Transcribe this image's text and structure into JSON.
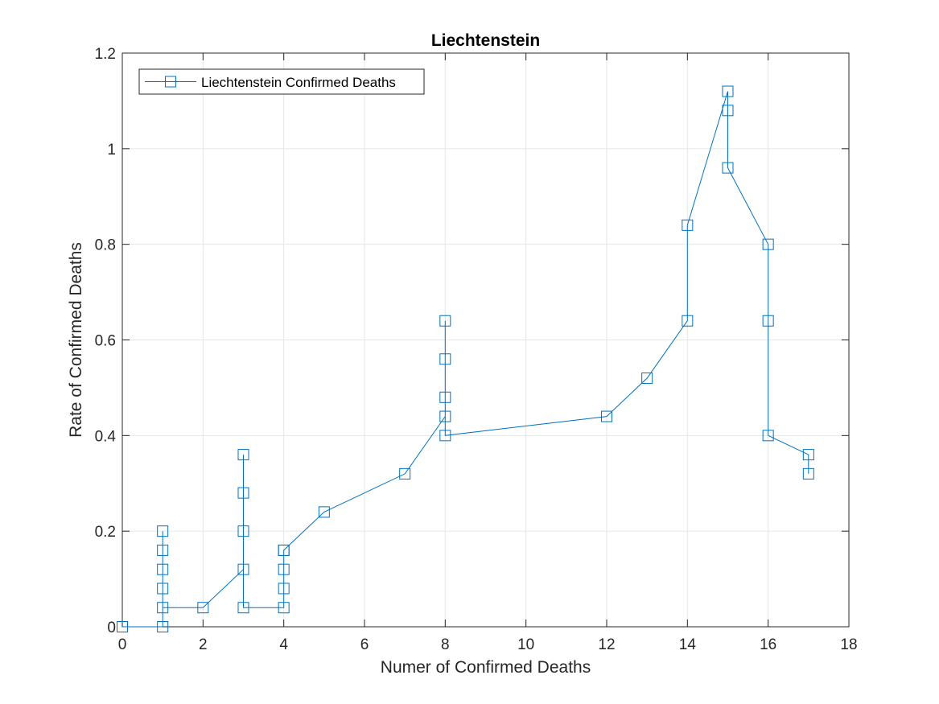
{
  "chart_data": {
    "type": "line",
    "title": "Liechtenstein",
    "xlabel": "Numer of Confirmed Deaths",
    "ylabel": "Rate of Confirmed Deaths",
    "xlim": [
      0,
      18
    ],
    "ylim": [
      0,
      1.2
    ],
    "x_ticks": [
      "0",
      "2",
      "4",
      "6",
      "8",
      "10",
      "12",
      "14",
      "16",
      "18"
    ],
    "y_ticks": [
      "0",
      "0.2",
      "0.4",
      "0.6",
      "0.8",
      "1",
      "1.2"
    ],
    "grid": true,
    "legend_position": "top-left",
    "marker": "square",
    "series": [
      {
        "name": "Liechtenstein Confirmed Deaths",
        "color": "#0072BD",
        "x": [
          0,
          1,
          1,
          1,
          1,
          1,
          1,
          2,
          3,
          3,
          3,
          3,
          3,
          4,
          4,
          4,
          4,
          4,
          5,
          7,
          8,
          8,
          8,
          8,
          8,
          12,
          13,
          14,
          14,
          15,
          15,
          15,
          16,
          16,
          16,
          17,
          17
        ],
        "y": [
          0,
          0,
          0.2,
          0.16,
          0.12,
          0.08,
          0.04,
          0.04,
          0.12,
          0.36,
          0.28,
          0.2,
          0.04,
          0.04,
          0.08,
          0.12,
          0.16,
          0.16,
          0.24,
          0.32,
          0.44,
          0.64,
          0.56,
          0.48,
          0.4,
          0.44,
          0.52,
          0.64,
          0.84,
          1.12,
          1.08,
          0.96,
          0.8,
          0.64,
          0.4,
          0.36,
          0.32
        ]
      }
    ]
  }
}
